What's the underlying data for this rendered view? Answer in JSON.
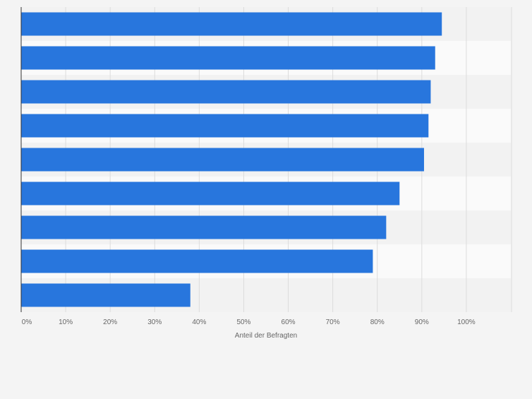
{
  "chart_data": {
    "type": "bar",
    "orientation": "horizontal",
    "categories": [
      "",
      "",
      "",
      "",
      "",
      "",
      "",
      "",
      ""
    ],
    "values": [
      94.5,
      93,
      92,
      91.5,
      90.5,
      85,
      82,
      79,
      38
    ],
    "xlabel": "Anteil der Befragten",
    "ylabel": "",
    "xlim": [
      0,
      110
    ],
    "x_ticks": [
      {
        "value": 0,
        "label": "0%"
      },
      {
        "value": 10,
        "label": "10%"
      },
      {
        "value": 20,
        "label": "20%"
      },
      {
        "value": 30,
        "label": "30%"
      },
      {
        "value": 40,
        "label": "40%"
      },
      {
        "value": 50,
        "label": "50%"
      },
      {
        "value": 60,
        "label": "60%"
      },
      {
        "value": 70,
        "label": "70%"
      },
      {
        "value": 80,
        "label": "80%"
      },
      {
        "value": 90,
        "label": "90%"
      },
      {
        "value": 100,
        "label": "100%"
      }
    ],
    "grid": true,
    "legend": "none",
    "colors": {
      "bar": "#2876dd",
      "band_dark": "#f2f2f2",
      "band_light": "#fafafa",
      "grid": "#dcdcdc",
      "axis": "#333333",
      "tick_text": "#666666"
    }
  }
}
